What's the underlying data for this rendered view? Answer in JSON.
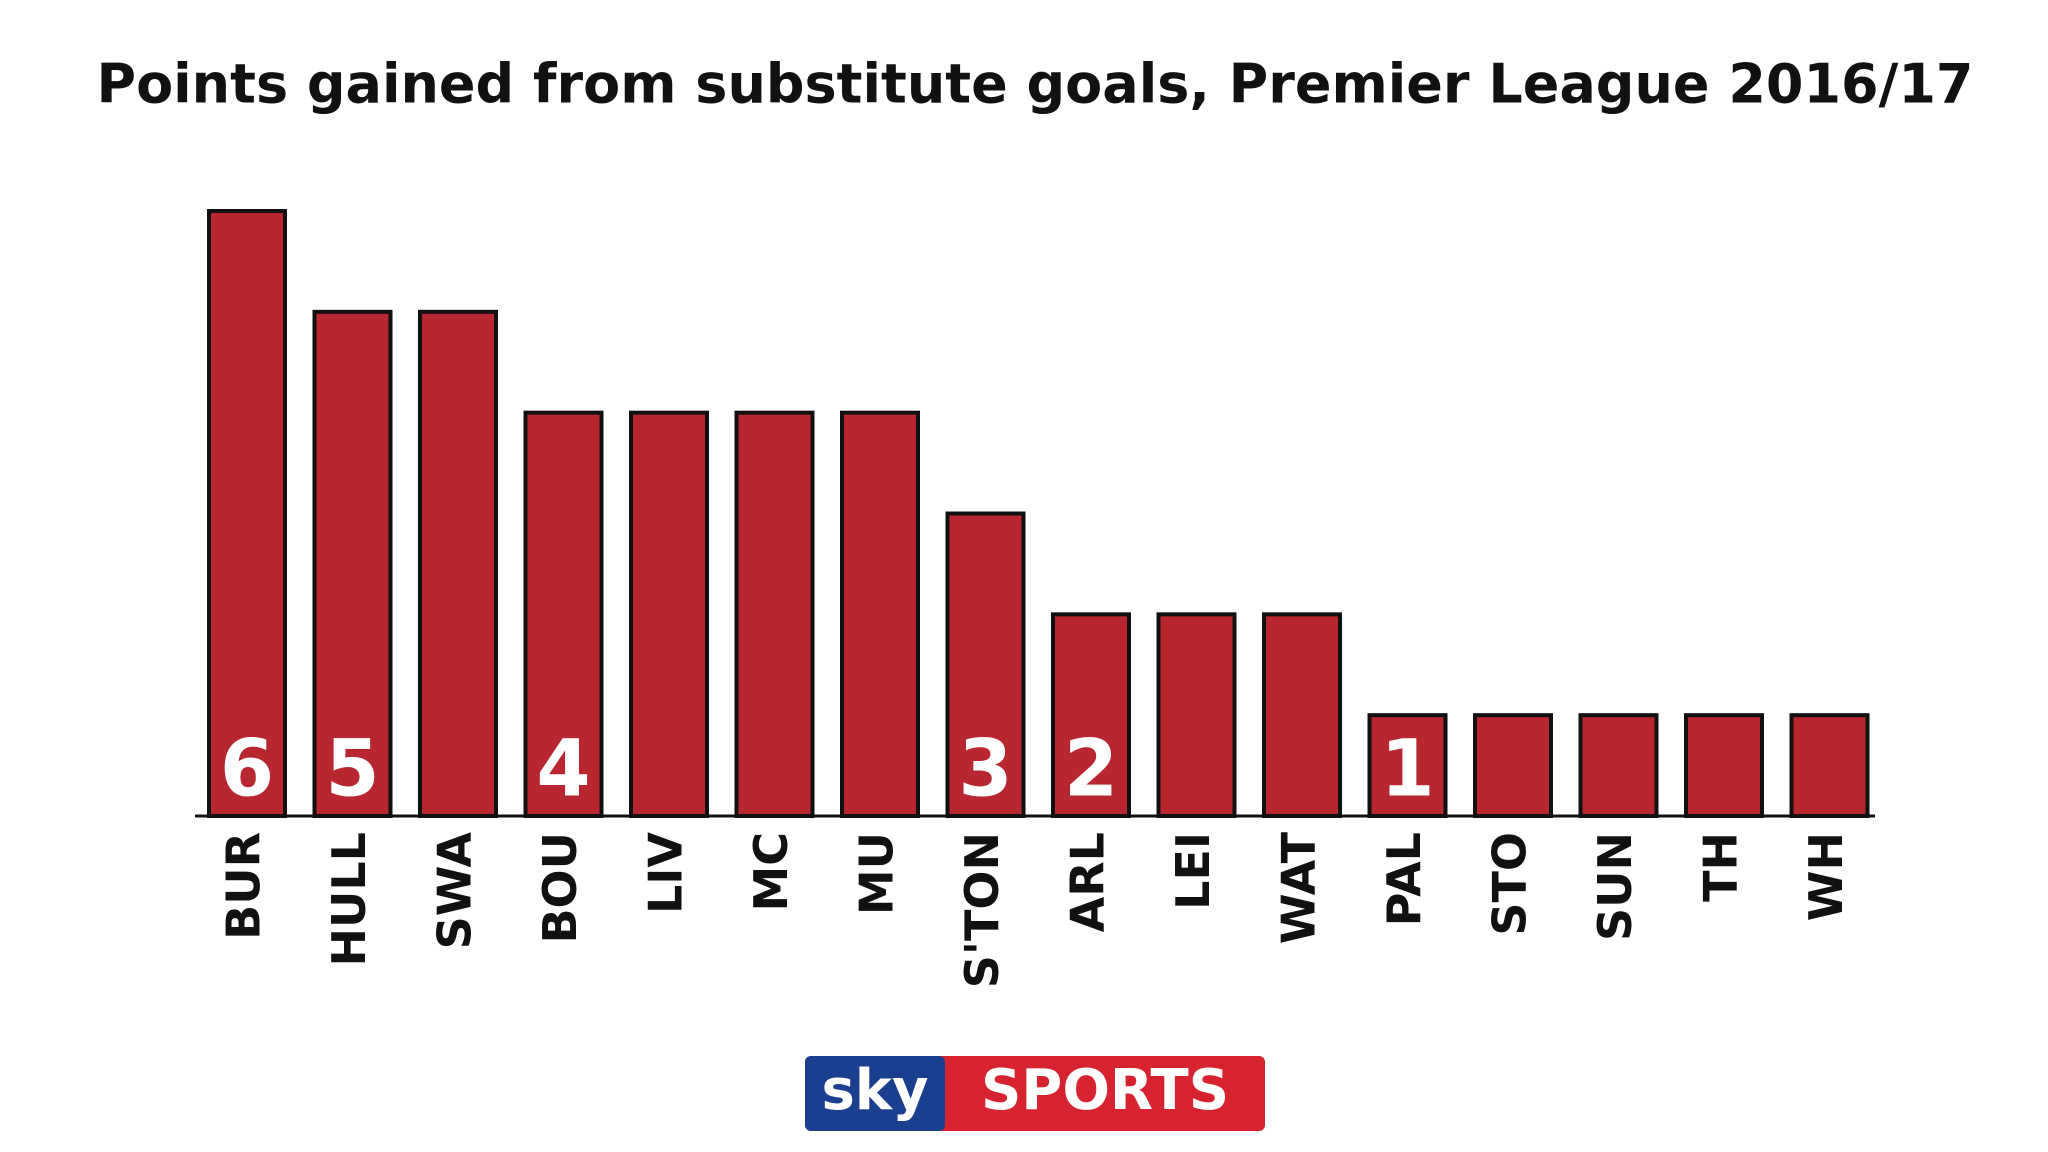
{
  "chart_data": {
    "type": "bar",
    "title": "Points gained from substitute goals, Premier League 2016/17",
    "categories": [
      "BUR",
      "HULL",
      "SWA",
      "BOU",
      "LIV",
      "MC",
      "MU",
      "S'TON",
      "ARL",
      "LEI",
      "WAT",
      "PAL",
      "STO",
      "SUN",
      "TH",
      "WH"
    ],
    "values": [
      6,
      5,
      5,
      4,
      4,
      4,
      4,
      3,
      2,
      2,
      2,
      1,
      1,
      1,
      1,
      1
    ],
    "color": "#b8262f",
    "ylim": [
      0,
      6
    ]
  },
  "logo": {
    "left": "sky",
    "right": "SPORTS"
  }
}
